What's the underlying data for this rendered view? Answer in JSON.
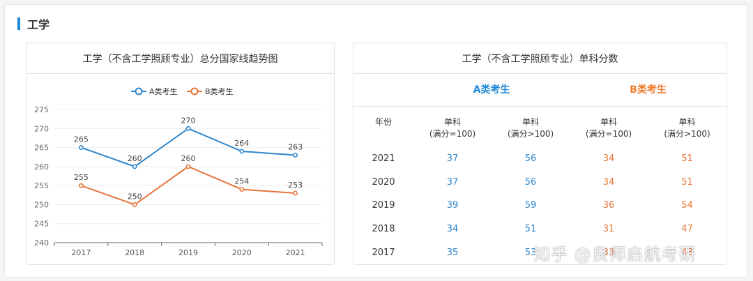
{
  "section": {
    "title": "工学"
  },
  "chart_data": {
    "type": "line",
    "title": "工学（不含工学照顾专业）总分国家线趋势图",
    "xlabel": "",
    "ylabel": "",
    "categories": [
      "2017",
      "2018",
      "2019",
      "2020",
      "2021"
    ],
    "series": [
      {
        "name": "A类考生",
        "values": [
          265,
          260,
          270,
          264,
          263
        ],
        "color": "#2f86cc"
      },
      {
        "name": "B类考生",
        "values": [
          255,
          250,
          260,
          254,
          253
        ],
        "color": "#e8743a"
      }
    ],
    "ylim": [
      240,
      275
    ],
    "yticks": [
      "240",
      "245",
      "250",
      "255",
      "260",
      "265",
      "270",
      "275"
    ],
    "grid": true,
    "legend": "top-center",
    "data_labels": true
  },
  "table": {
    "title": "工学（不含工学照顾专业）单科分数",
    "group_a": "A类考生",
    "group_b": "B类考生",
    "headers": [
      [
        "年份",
        ""
      ],
      [
        "单科",
        "(满分=100)"
      ],
      [
        "单科",
        "(满分>100)"
      ],
      [
        "单科",
        "(满分=100)"
      ],
      [
        "单科",
        "(满分>100)"
      ]
    ],
    "rows": [
      [
        "2021",
        "37",
        "56",
        "34",
        "51"
      ],
      [
        "2020",
        "37",
        "56",
        "34",
        "51"
      ],
      [
        "2019",
        "39",
        "59",
        "36",
        "54"
      ],
      [
        "2018",
        "34",
        "51",
        "31",
        "47"
      ],
      [
        "2017",
        "35",
        "53",
        "33",
        "48"
      ]
    ]
  },
  "watermark": "知乎 @良师启航考研"
}
